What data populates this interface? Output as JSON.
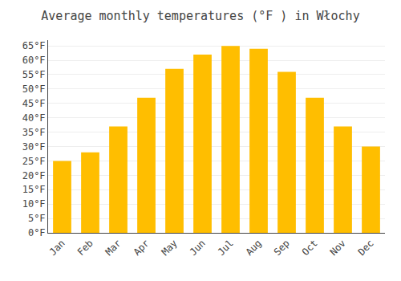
{
  "chart_data": {
    "type": "bar",
    "title": "Average monthly temperatures (°F ) in Włochy",
    "categories": [
      "Jan",
      "Feb",
      "Mar",
      "Apr",
      "May",
      "Jun",
      "Jul",
      "Aug",
      "Sep",
      "Oct",
      "Nov",
      "Dec"
    ],
    "values": [
      25,
      28,
      37,
      47,
      57,
      62,
      65,
      64,
      56,
      47,
      37,
      30
    ],
    "color": "#FFBE00",
    "ylim": [
      0,
      67
    ],
    "yticks": [
      {
        "value": 0,
        "label": "0°F"
      },
      {
        "value": 5,
        "label": "5°F"
      },
      {
        "value": 10,
        "label": "10°F"
      },
      {
        "value": 15,
        "label": "15°F"
      },
      {
        "value": 20,
        "label": "20°F"
      },
      {
        "value": 25,
        "label": "25°F"
      },
      {
        "value": 30,
        "label": "30°F"
      },
      {
        "value": 35,
        "label": "35°F"
      },
      {
        "value": 40,
        "label": "40°F"
      },
      {
        "value": 45,
        "label": "45°F"
      },
      {
        "value": 50,
        "label": "50°F"
      },
      {
        "value": 55,
        "label": "55°F"
      },
      {
        "value": 60,
        "label": "60°F"
      },
      {
        "value": 65,
        "label": "65°F"
      }
    ],
    "grid": true
  }
}
